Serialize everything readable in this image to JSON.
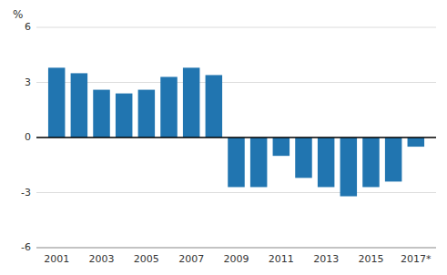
{
  "chart_data": {
    "type": "bar",
    "y_label": "%",
    "x": [
      2001,
      2002,
      2003,
      2004,
      2005,
      2006,
      2007,
      2008,
      2009,
      2010,
      2011,
      2012,
      2013,
      2014,
      2015,
      2016,
      2017
    ],
    "values": [
      3.8,
      3.5,
      2.6,
      2.4,
      2.6,
      3.3,
      3.8,
      3.4,
      -2.7,
      -2.7,
      -1.0,
      -2.2,
      -2.7,
      -3.2,
      -2.7,
      -2.4,
      -0.5
    ],
    "color": "#2175b0",
    "xlim": [
      2000.1,
      2017.9
    ],
    "xticks": [
      2001,
      2003,
      2005,
      2007,
      2009,
      2011,
      2013,
      2015,
      {
        "value": 2017,
        "label": "2017*"
      }
    ],
    "ylim": [
      -6,
      6
    ],
    "yticks": [
      -6,
      -3,
      0,
      3,
      6
    ],
    "grid": true
  }
}
